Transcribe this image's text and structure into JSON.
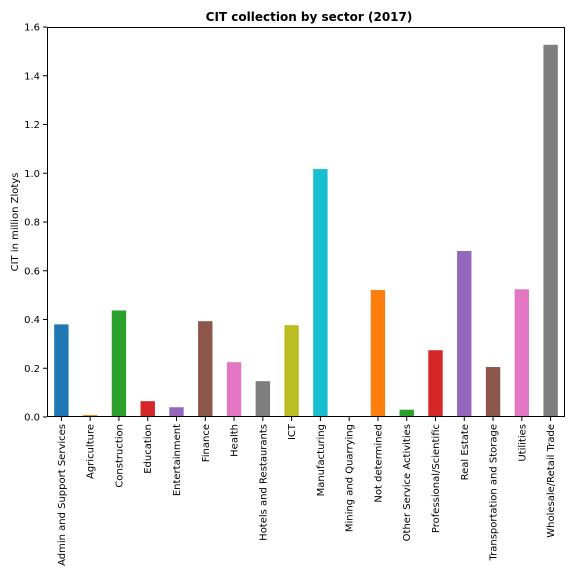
{
  "chart_data": {
    "type": "bar",
    "title": "CIT collection by sector (2017)",
    "xlabel": "",
    "ylabel": "CIT in million Zlotys",
    "ylim": [
      0,
      1.6
    ],
    "yticks": [
      "0.0",
      "0.2",
      "0.4",
      "0.6",
      "0.8",
      "1.0",
      "1.2",
      "1.4",
      "1.6"
    ],
    "grid": false,
    "legend": "none",
    "categories": [
      "Admin and Support Services",
      "Agriculture",
      "Construction",
      "Education",
      "Entertainment",
      "Finance",
      "Health",
      "Hotels and Restaurants",
      "ICT",
      "Manufacturing",
      "Mining and Quarrying",
      "Not determined",
      "Other Service Activities",
      "Professional/Scientific",
      "Real Estate",
      "Transportation and Storage",
      "Utilities",
      "Wholesale/Retail Trade"
    ],
    "values": [
      0.38,
      0.008,
      0.437,
      0.065,
      0.04,
      0.393,
      0.225,
      0.147,
      0.377,
      1.017,
      0.004,
      0.521,
      0.03,
      0.274,
      0.681,
      0.205,
      0.524,
      1.527
    ],
    "colors": [
      "#1f77b4",
      "#ff7f0e",
      "#2ca02c",
      "#d62728",
      "#9467bd",
      "#8c564b",
      "#e377c2",
      "#7f7f7f",
      "#bcbd22",
      "#17becf",
      "#1f77b4",
      "#ff7f0e",
      "#2ca02c",
      "#d62728",
      "#9467bd",
      "#8c564b",
      "#e377c2",
      "#7f7f7f"
    ]
  }
}
